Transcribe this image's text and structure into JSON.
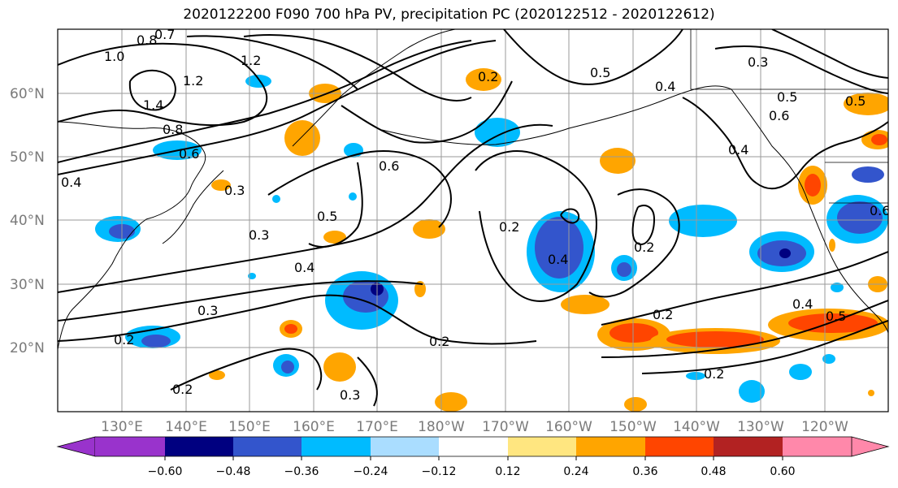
{
  "title": "2020122200 F090 700 hPa PV, precipitation PC (2020122512 - 2020122612)",
  "map": {
    "lat_labels": [
      "60°N",
      "50°N",
      "40°N",
      "30°N",
      "20°N"
    ],
    "lon_labels": [
      "130°E",
      "140°E",
      "150°E",
      "160°E",
      "170°E",
      "180°W",
      "170°W",
      "160°W",
      "150°W",
      "140°W",
      "130°W",
      "120°W"
    ],
    "pv_contour_labels": [
      "0.8",
      "0.7",
      "1.0",
      "1.4",
      "1.2",
      "1.2",
      "0.8",
      "0.6",
      "0.4",
      "0.3",
      "0.3",
      "0.5",
      "0.4",
      "0.3",
      "0.2",
      "0.2",
      "0.2",
      "0.3",
      "0.2",
      "0.6",
      "0.2",
      "0.4",
      "0.2",
      "0.2",
      "0.2",
      "0.5",
      "0.4",
      "0.3",
      "0.5",
      "0.6",
      "0.4",
      "0.5",
      "0.6",
      "0.4",
      "0.5"
    ]
  },
  "colorbar": {
    "colors": [
      "#9933cc",
      "#000080",
      "#3355cc",
      "#00bbff",
      "#aaddff",
      "#ffffff",
      "#ffe680",
      "#ffa500",
      "#ff4500",
      "#b22222",
      "#ff88aa"
    ],
    "tick_labels": [
      "−0.60",
      "−0.48",
      "−0.36",
      "−0.24",
      "−0.12",
      "0.12",
      "0.24",
      "0.36",
      "0.48",
      "0.60"
    ]
  }
}
